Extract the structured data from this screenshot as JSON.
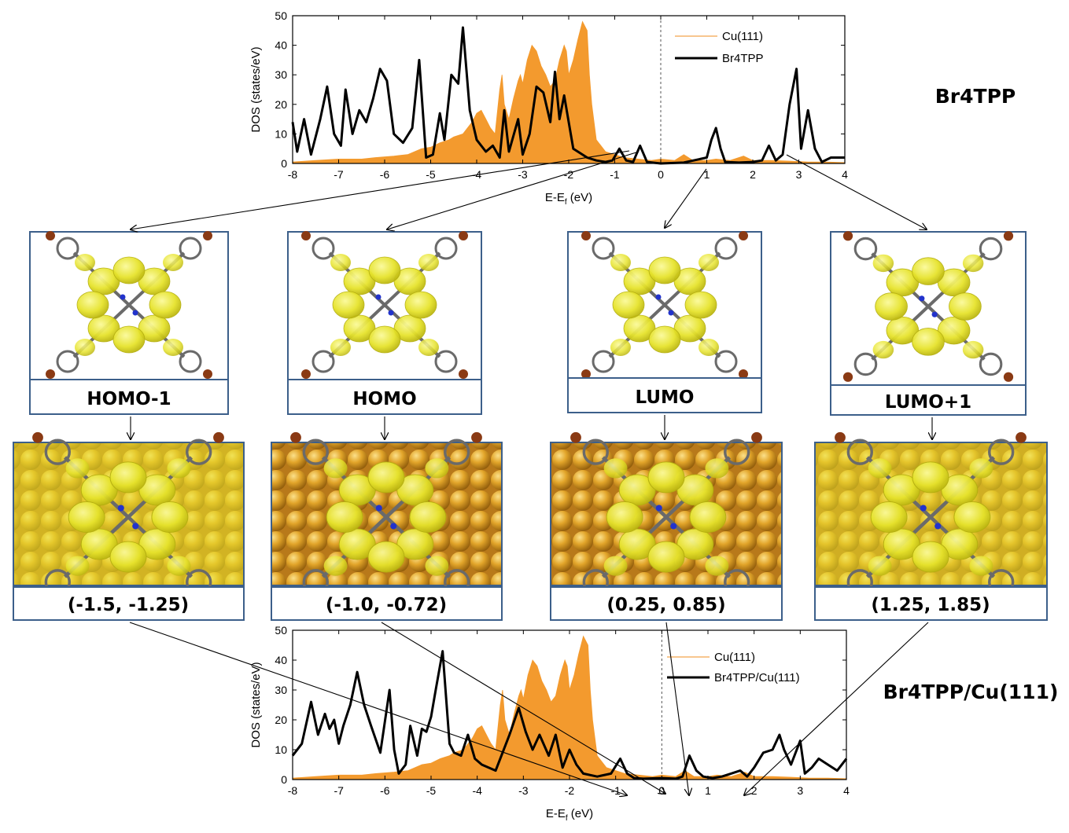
{
  "chart_data": [
    {
      "type": "area",
      "title": "",
      "side_label": "Br4TPP",
      "xlabel": "E-E",
      "xlabel_sub": "f",
      "xlabel_unit": " (eV)",
      "ylabel": "DOS (states/eV)",
      "xlim": [
        -8,
        4
      ],
      "ylim": [
        0,
        50
      ],
      "xticks": [
        -8,
        -7,
        -6,
        -5,
        -4,
        -3,
        -2,
        -1,
        0,
        1,
        2,
        3,
        4
      ],
      "yticks": [
        0,
        10,
        20,
        30,
        40,
        50
      ],
      "fermi_line": 0,
      "legend_position": "top-right",
      "series": [
        {
          "name": "Cu(111)",
          "style": "filled",
          "color": "#f39a2e",
          "x": [
            -8,
            -7.5,
            -7,
            -6.5,
            -6.2,
            -5.8,
            -5.5,
            -5.2,
            -5,
            -4.8,
            -4.6,
            -4.5,
            -4.3,
            -4.1,
            -4,
            -3.9,
            -3.8,
            -3.7,
            -3.6,
            -3.5,
            -3.45,
            -3.4,
            -3.3,
            -3.2,
            -3.1,
            -3.05,
            -3,
            -2.9,
            -2.8,
            -2.7,
            -2.6,
            -2.5,
            -2.4,
            -2.3,
            -2.2,
            -2.1,
            -2.05,
            -2,
            -1.9,
            -1.8,
            -1.7,
            -1.6,
            -1.55,
            -1.5,
            -1.4,
            -1.2,
            -1,
            -0.8,
            -0.5,
            -0.2,
            0,
            0.3,
            0.5,
            0.7,
            1,
            1.2,
            1.5,
            1.8,
            2,
            2.4,
            2.8,
            3.2,
            3.6,
            4
          ],
          "y": [
            0.5,
            1,
            1.5,
            1.5,
            2,
            2.5,
            3,
            5,
            5.5,
            7,
            8,
            9,
            10,
            14,
            17,
            18,
            15,
            12,
            10,
            25,
            30,
            20,
            15,
            22,
            28,
            30,
            27,
            35,
            40,
            38,
            33,
            30,
            26,
            28,
            35,
            40,
            38,
            30,
            35,
            42,
            48,
            45,
            30,
            20,
            8,
            4,
            3,
            2,
            1.5,
            1,
            1.5,
            1,
            3,
            1,
            1,
            1.5,
            1,
            2.5,
            1,
            1,
            0.8,
            0.5,
            0.5,
            0.3
          ]
        },
        {
          "name": "Br4TPP",
          "style": "line",
          "color": "#000000",
          "x": [
            -8,
            -7.9,
            -7.75,
            -7.6,
            -7.4,
            -7.25,
            -7.1,
            -6.95,
            -6.85,
            -6.7,
            -6.55,
            -6.4,
            -6.25,
            -6.1,
            -5.95,
            -5.8,
            -5.6,
            -5.4,
            -5.25,
            -5.1,
            -4.95,
            -4.8,
            -4.7,
            -4.55,
            -4.4,
            -4.3,
            -4.15,
            -4,
            -3.8,
            -3.65,
            -3.5,
            -3.4,
            -3.3,
            -3.1,
            -3,
            -2.85,
            -2.7,
            -2.55,
            -2.4,
            -2.3,
            -2.2,
            -2.1,
            -2,
            -1.9,
            -1.8,
            -1.6,
            -1.4,
            -1.2,
            -1.05,
            -0.9,
            -0.75,
            -0.6,
            -0.45,
            -0.3,
            0,
            0.5,
            1,
            1.1,
            1.2,
            1.3,
            1.4,
            1.7,
            2,
            2.2,
            2.35,
            2.5,
            2.65,
            2.8,
            2.95,
            3.05,
            3.2,
            3.35,
            3.5,
            3.7,
            4
          ],
          "y": [
            14,
            4,
            15,
            3,
            15,
            26,
            10,
            6,
            25,
            10,
            18,
            14,
            22,
            32,
            28,
            10,
            7,
            12,
            35,
            2,
            3,
            17,
            8,
            30,
            27,
            46,
            18,
            8,
            4,
            6,
            2,
            18,
            4,
            15,
            3,
            10,
            26,
            24,
            14,
            31,
            15,
            23,
            14,
            5,
            4,
            2,
            1,
            0.5,
            1,
            5,
            1,
            0.5,
            6,
            0.5,
            0,
            0.3,
            2,
            8,
            12,
            5,
            0.5,
            0.3,
            0.5,
            1,
            6,
            1,
            3,
            20,
            32,
            5,
            18,
            5,
            0.5,
            2,
            2
          ]
        }
      ]
    },
    {
      "type": "area",
      "title": "",
      "side_label": "Br4TPP/Cu(111)",
      "xlabel": "E-E",
      "xlabel_sub": "f",
      "xlabel_unit": " (eV)",
      "ylabel": "DOS (states/eV)",
      "xlim": [
        -8,
        4
      ],
      "ylim": [
        0,
        50
      ],
      "xticks": [
        -8,
        -7,
        -6,
        -5,
        -4,
        -3,
        -2,
        -1,
        0,
        1,
        2,
        3,
        4
      ],
      "yticks": [
        0,
        10,
        20,
        30,
        40,
        50
      ],
      "fermi_line": 0,
      "legend_position": "top-right",
      "series": [
        {
          "name": "Cu(111)",
          "style": "filled",
          "color": "#f39a2e",
          "x": [
            -8,
            -7.5,
            -7,
            -6.5,
            -6.2,
            -5.8,
            -5.5,
            -5.2,
            -5,
            -4.8,
            -4.6,
            -4.5,
            -4.3,
            -4.1,
            -4,
            -3.9,
            -3.8,
            -3.7,
            -3.6,
            -3.5,
            -3.45,
            -3.4,
            -3.3,
            -3.2,
            -3.1,
            -3.05,
            -3,
            -2.9,
            -2.8,
            -2.7,
            -2.6,
            -2.5,
            -2.4,
            -2.3,
            -2.2,
            -2.1,
            -2.05,
            -2,
            -1.9,
            -1.8,
            -1.7,
            -1.6,
            -1.55,
            -1.5,
            -1.4,
            -1.2,
            -1,
            -0.8,
            -0.5,
            -0.2,
            0,
            0.3,
            0.5,
            0.7,
            1,
            1.2,
            1.5,
            1.8,
            2,
            2.4,
            2.8,
            3.2,
            3.6,
            4
          ],
          "y": [
            0.5,
            1,
            1.5,
            1.5,
            2,
            2.5,
            3,
            5,
            5.5,
            7,
            8,
            9,
            10,
            14,
            17,
            18,
            15,
            12,
            10,
            25,
            30,
            20,
            15,
            22,
            28,
            30,
            27,
            35,
            40,
            38,
            33,
            30,
            26,
            28,
            35,
            40,
            38,
            30,
            35,
            42,
            48,
            45,
            30,
            20,
            8,
            4,
            3,
            2,
            1.5,
            1,
            1.5,
            1,
            3,
            1,
            1,
            1.5,
            1,
            2.5,
            1,
            1,
            0.8,
            0.5,
            0.5,
            0.3
          ]
        },
        {
          "name": "Br4TPP/Cu(111)",
          "style": "line",
          "color": "#000000",
          "x": [
            -8,
            -7.8,
            -7.6,
            -7.45,
            -7.3,
            -7.2,
            -7.1,
            -7,
            -6.9,
            -6.75,
            -6.6,
            -6.45,
            -6.3,
            -6.1,
            -5.9,
            -5.8,
            -5.7,
            -5.55,
            -5.45,
            -5.3,
            -5.2,
            -5.1,
            -5,
            -4.9,
            -4.75,
            -4.6,
            -4.5,
            -4.35,
            -4.2,
            -4.05,
            -3.9,
            -3.6,
            -3.3,
            -3.1,
            -2.95,
            -2.8,
            -2.65,
            -2.45,
            -2.3,
            -2.15,
            -2,
            -1.85,
            -1.7,
            -1.4,
            -1.1,
            -0.9,
            -0.75,
            -0.6,
            -0.4,
            0,
            0.3,
            0.45,
            0.6,
            0.75,
            0.9,
            1.1,
            1.3,
            1.5,
            1.7,
            1.85,
            2,
            2.2,
            2.4,
            2.55,
            2.65,
            2.8,
            3,
            3.1,
            3.25,
            3.4,
            3.6,
            3.8,
            4
          ],
          "y": [
            8,
            12,
            26,
            15,
            22,
            17,
            20,
            12,
            18,
            25,
            36,
            25,
            18,
            9,
            30,
            10,
            2,
            5,
            18,
            8,
            17,
            16,
            21,
            30,
            43,
            12,
            9,
            8,
            15,
            7,
            5,
            3,
            15,
            24,
            16,
            10,
            15,
            8,
            15,
            4,
            10,
            5,
            2,
            1,
            2,
            7,
            2,
            0.5,
            0.3,
            0.5,
            0.3,
            1,
            8,
            3,
            1,
            0.5,
            1,
            2,
            3,
            1,
            4,
            9,
            10,
            15,
            10,
            5,
            13,
            2,
            4,
            7,
            5,
            3,
            7
          ]
        }
      ]
    }
  ],
  "orbitals": {
    "labels": [
      "HOMO-1",
      "HOMO",
      "LUMO",
      "LUMO+1"
    ],
    "ranges": [
      "(-1.5, -1.25)",
      "(-1.0, -0.72)",
      "(0.25, 0.85)",
      "(1.25, 1.85)"
    ]
  },
  "colors": {
    "isosurface": "#e3e02a",
    "surface_atom": "#d89a1c",
    "box_border": "#3c5f8a",
    "bromine": "#8a3a14",
    "carbon": "#6a6a6a",
    "nitrogen": "#2233cc"
  }
}
